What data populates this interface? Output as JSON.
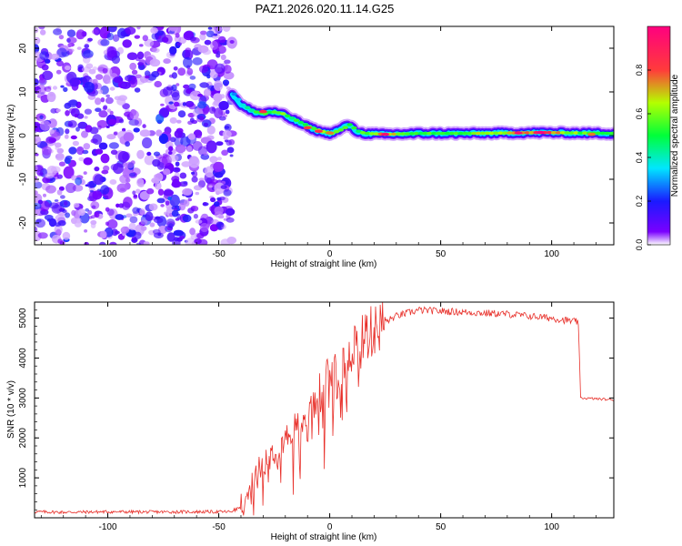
{
  "figure": {
    "title": "PAZ1.2026.020.11.14.G25"
  },
  "colors": {
    "snr_line": "#e8302a",
    "colormap": [
      "#ffffff",
      "#7a00ff",
      "#1a1aff",
      "#00e6ff",
      "#00ff3a",
      "#b4ff00",
      "#ff3b3b",
      "#ff007f"
    ]
  },
  "chart_data": [
    {
      "type": "heatmap",
      "title": "PAZ1.2026.020.11.14.G25",
      "xlabel": "Height of straight line (km)",
      "ylabel": "Frequency (Hz)",
      "xlim": [
        -133,
        128
      ],
      "ylim": [
        -25,
        25
      ],
      "x_ticks": [
        -100,
        -50,
        0,
        50,
        100
      ],
      "y_ticks": [
        -20,
        -10,
        0,
        10,
        20
      ],
      "colorbar": {
        "label": "Normalized spectral amplitude",
        "range": [
          0,
          1
        ],
        "ticks": [
          0.0,
          0.2,
          0.4,
          0.6,
          0.8
        ]
      },
      "noise_region": {
        "x": [
          -133,
          -44
        ],
        "amplitude_range": [
          0.02,
          0.2
        ]
      },
      "ridge": {
        "x": [
          -44,
          -40,
          -35,
          -30,
          -27,
          -22,
          -18,
          -14,
          -10,
          -5,
          0,
          5,
          8,
          12,
          15,
          25,
          40,
          60,
          80,
          95,
          110,
          128
        ],
        "frequency": [
          9.5,
          7,
          5.5,
          5,
          5.5,
          5,
          4,
          3,
          2,
          1,
          0.5,
          1.5,
          2.5,
          1,
          0.5,
          0.3,
          0.5,
          0.5,
          0.6,
          0.7,
          0.6,
          0.5
        ],
        "amplitude": [
          0.3,
          0.4,
          0.5,
          0.55,
          0.5,
          0.6,
          0.5,
          0.5,
          0.55,
          0.7,
          0.65,
          0.6,
          0.5,
          0.55,
          0.6,
          0.75,
          0.55,
          0.6,
          0.7,
          0.85,
          0.6,
          0.55
        ]
      }
    },
    {
      "type": "line",
      "xlabel": "Height of straight line (km)",
      "ylabel": "SNR (10 * v/v)",
      "xlim": [
        -133,
        128
      ],
      "ylim": [
        0,
        5400
      ],
      "x_ticks": [
        -100,
        -50,
        0,
        50,
        100
      ],
      "y_ticks": [
        1000,
        2000,
        3000,
        4000,
        5000
      ],
      "series": [
        {
          "name": "SNR",
          "x": [
            -133,
            -120,
            -100,
            -80,
            -60,
            -45,
            -38,
            -34,
            -30,
            -25,
            -20,
            -15,
            -10,
            -5,
            0,
            5,
            10,
            15,
            20,
            25,
            30,
            40,
            60,
            80,
            100,
            112,
            113,
            120,
            128
          ],
          "values": [
            150,
            140,
            150,
            145,
            150,
            150,
            300,
            900,
            1400,
            1700,
            2000,
            2300,
            2600,
            3000,
            3500,
            3900,
            4300,
            4500,
            4700,
            4900,
            5050,
            5200,
            5150,
            5100,
            5000,
            4900,
            3000,
            2980,
            2950
          ]
        }
      ]
    }
  ]
}
